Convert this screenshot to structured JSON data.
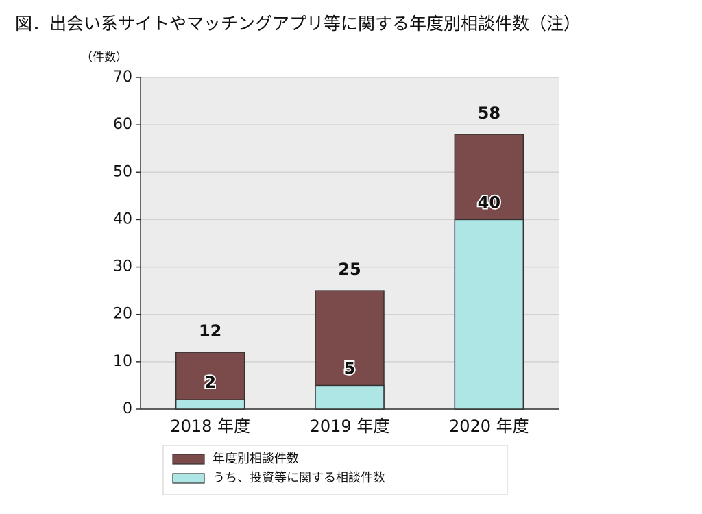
{
  "chart_data": {
    "type": "bar",
    "title": "図．出会い系サイトやマッチングアプリ等に関する年度別相談件数（注）",
    "y_label": "（件数）",
    "categories": [
      "2018 年度",
      "2019 年度",
      "2020 年度"
    ],
    "series": [
      {
        "name": "年度別相談件数",
        "color": "#7b4b4b",
        "values": [
          12,
          25,
          58
        ]
      },
      {
        "name": "うち、投資等に関する相談件数",
        "color": "#aee6e6",
        "values": [
          2,
          5,
          40
        ]
      }
    ],
    "ylim": [
      0,
      70
    ],
    "yticks": [
      0,
      10,
      20,
      30,
      40,
      50,
      60,
      70
    ],
    "grid": true,
    "legend": "bottom"
  }
}
